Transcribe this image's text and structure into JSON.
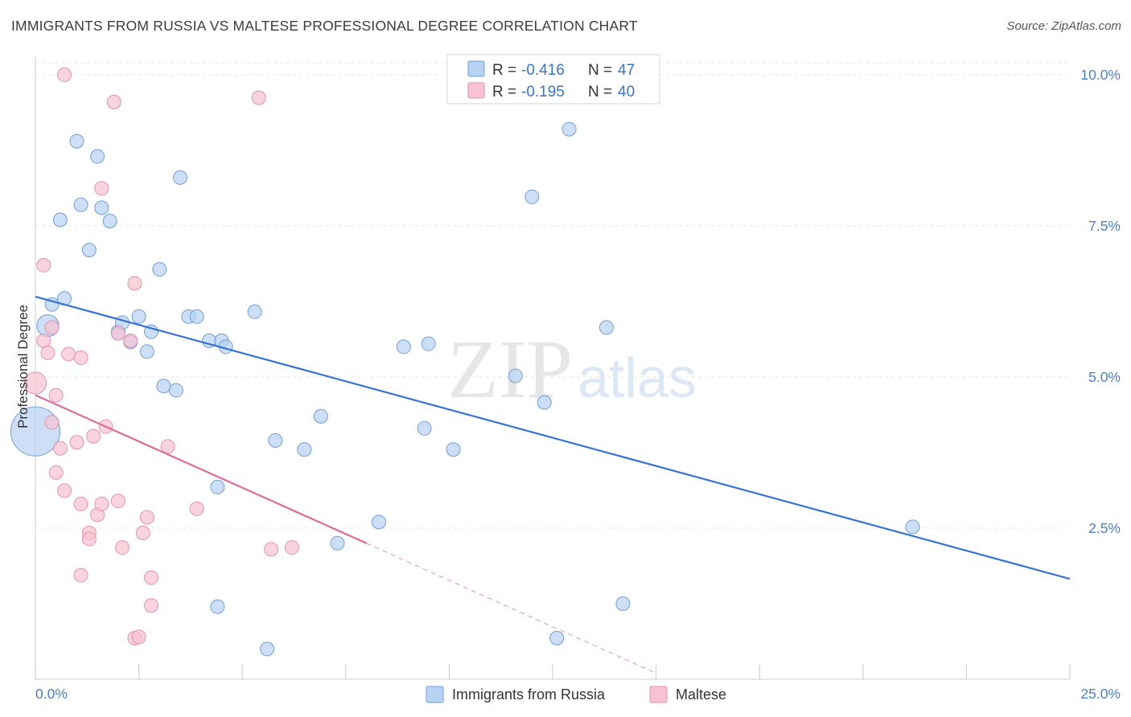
{
  "title": "IMMIGRANTS FROM RUSSIA VS MALTESE PROFESSIONAL DEGREE CORRELATION CHART",
  "source": "Source: ZipAtlas.com",
  "watermark": {
    "zip": "ZIP",
    "atlas": "atlas"
  },
  "colors": {
    "russia_fill": "#b8d2f2",
    "russia_stroke": "#6f9fdc",
    "russia_line": "#3574d4",
    "maltese_fill": "#f7c3d2",
    "maltese_stroke": "#e592ad",
    "maltese_line": "#e06b95",
    "tick_label": "#4a7fd0",
    "grid": "#e6e6e6"
  },
  "legend": {
    "rows": [
      {
        "r_label": "R = ",
        "r_value": "-0.416",
        "n_label": "N = ",
        "n_value": "47"
      },
      {
        "r_label": "R = ",
        "r_value": "-0.195",
        "n_label": "N = ",
        "n_value": "40"
      }
    ]
  },
  "bottom_legend": [
    "Immigrants from Russia",
    "Maltese"
  ],
  "chart_data": {
    "type": "scatter",
    "title": "IMMIGRANTS FROM RUSSIA VS MALTESE PROFESSIONAL DEGREE CORRELATION CHART",
    "xlabel": "",
    "ylabel": "Professional Degree",
    "xlim": [
      0,
      25
    ],
    "ylim": [
      0,
      10.2
    ],
    "x_tick_labels": [
      "0.0%",
      "25.0%"
    ],
    "y_ticks": [
      2.5,
      5.0,
      7.5,
      10.0
    ],
    "y_tick_labels": [
      "2.5%",
      "5.0%",
      "7.5%",
      "10.0%"
    ],
    "grid": true,
    "legend_position": "top-center",
    "series": [
      {
        "name": "Immigrants from Russia",
        "r": -0.416,
        "n": 47,
        "trend": {
          "x": [
            0,
            25
          ],
          "y": [
            6.33,
            1.66
          ],
          "dashed_after": null
        },
        "points": [
          [
            0.0,
            4.1,
            3.6
          ],
          [
            0.3,
            5.85,
            1.6
          ],
          [
            0.4,
            6.2,
            1
          ],
          [
            0.7,
            6.3,
            1
          ],
          [
            0.6,
            7.6,
            1
          ],
          [
            1.0,
            8.9,
            1
          ],
          [
            1.1,
            7.85,
            1
          ],
          [
            1.3,
            7.1,
            1
          ],
          [
            1.5,
            8.65,
            1
          ],
          [
            1.6,
            7.8,
            1
          ],
          [
            1.8,
            7.58,
            1
          ],
          [
            2.0,
            5.75,
            1
          ],
          [
            2.1,
            5.9,
            1
          ],
          [
            2.3,
            5.58,
            1
          ],
          [
            2.5,
            6.0,
            1
          ],
          [
            2.7,
            5.42,
            1
          ],
          [
            2.8,
            5.75,
            1
          ],
          [
            3.0,
            6.78,
            1
          ],
          [
            3.1,
            4.85,
            1
          ],
          [
            3.4,
            4.78,
            1
          ],
          [
            3.5,
            8.3,
            1
          ],
          [
            3.7,
            6.0,
            1
          ],
          [
            3.9,
            6.0,
            1
          ],
          [
            4.2,
            5.6,
            1
          ],
          [
            4.5,
            5.6,
            1
          ],
          [
            4.6,
            5.5,
            1
          ],
          [
            4.4,
            3.18,
            1
          ],
          [
            4.4,
            1.2,
            1
          ],
          [
            5.3,
            6.08,
            1
          ],
          [
            5.6,
            0.5,
            1
          ],
          [
            5.8,
            3.95,
            1
          ],
          [
            6.5,
            3.8,
            1
          ],
          [
            6.9,
            4.35,
            1
          ],
          [
            7.3,
            2.25,
            1
          ],
          [
            8.3,
            2.6,
            1
          ],
          [
            8.9,
            5.5,
            1
          ],
          [
            9.4,
            4.15,
            1
          ],
          [
            9.5,
            5.55,
            1
          ],
          [
            10.1,
            3.8,
            1
          ],
          [
            11.6,
            5.02,
            1
          ],
          [
            12.0,
            7.98,
            1
          ],
          [
            12.3,
            4.58,
            1
          ],
          [
            12.6,
            0.68,
            1
          ],
          [
            12.9,
            9.1,
            1
          ],
          [
            13.8,
            5.82,
            1
          ],
          [
            14.2,
            1.25,
            1
          ],
          [
            21.2,
            2.52,
            1
          ]
        ]
      },
      {
        "name": "Maltese",
        "r": -0.195,
        "n": 40,
        "trend": {
          "x": [
            0,
            8.0,
            15.0
          ],
          "y": [
            4.7,
            2.25,
            0.1
          ],
          "dashed_after": 8.0
        },
        "points": [
          [
            0.0,
            4.9,
            1.6
          ],
          [
            0.2,
            5.6,
            1
          ],
          [
            0.3,
            5.4,
            1
          ],
          [
            0.4,
            5.82,
            1
          ],
          [
            0.2,
            6.85,
            1
          ],
          [
            0.4,
            4.25,
            1
          ],
          [
            0.5,
            4.7,
            1
          ],
          [
            0.5,
            3.42,
            1
          ],
          [
            0.6,
            3.82,
            1
          ],
          [
            0.7,
            3.12,
            1
          ],
          [
            0.7,
            10.0,
            1
          ],
          [
            0.8,
            5.38,
            1
          ],
          [
            1.0,
            3.92,
            1
          ],
          [
            1.1,
            5.32,
            1
          ],
          [
            1.1,
            2.9,
            1
          ],
          [
            1.1,
            1.72,
            1
          ],
          [
            1.3,
            2.42,
            1
          ],
          [
            1.3,
            2.32,
            1
          ],
          [
            1.4,
            4.02,
            1
          ],
          [
            1.5,
            2.72,
            1
          ],
          [
            1.6,
            8.12,
            1
          ],
          [
            1.6,
            2.9,
            1
          ],
          [
            1.7,
            4.18,
            1
          ],
          [
            1.9,
            9.55,
            1
          ],
          [
            2.0,
            5.72,
            1
          ],
          [
            2.0,
            2.95,
            1
          ],
          [
            2.1,
            2.18,
            1
          ],
          [
            2.3,
            5.6,
            1
          ],
          [
            2.4,
            6.55,
            1
          ],
          [
            2.4,
            0.68,
            1
          ],
          [
            2.5,
            0.7,
            1
          ],
          [
            2.6,
            2.42,
            1
          ],
          [
            2.7,
            2.68,
            1
          ],
          [
            2.8,
            1.68,
            1
          ],
          [
            2.8,
            1.22,
            1
          ],
          [
            3.2,
            3.85,
            1
          ],
          [
            3.9,
            2.82,
            1
          ],
          [
            5.4,
            9.62,
            1
          ],
          [
            5.7,
            2.15,
            1
          ],
          [
            6.2,
            2.18,
            1
          ]
        ]
      }
    ]
  }
}
